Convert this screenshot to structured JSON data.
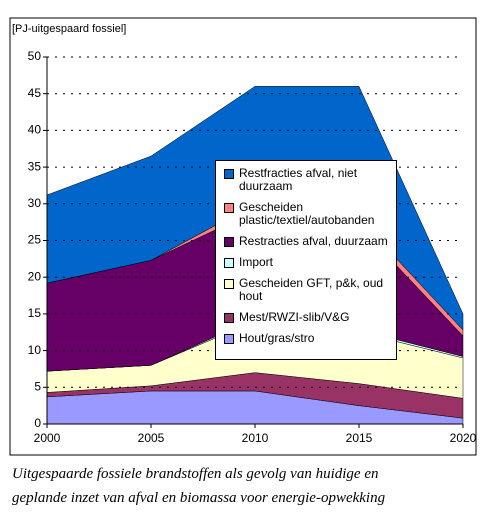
{
  "chart_data": {
    "type": "area",
    "stacked": true,
    "y_label": "[PJ-uitgespaard fossiel]",
    "caption": [
      "Uitgespaarde fossiele brandstoffen als gevolg van huidige en",
      "geplande inzet van afval en biomassa voor energie-opwekking"
    ],
    "x": [
      2000,
      2005,
      2010,
      2015,
      2020
    ],
    "xlim": [
      2000,
      2020
    ],
    "xticks": [
      2000,
      2005,
      2010,
      2015,
      2020
    ],
    "ylim": [
      0,
      50
    ],
    "yticks": [
      0,
      5,
      10,
      15,
      20,
      25,
      30,
      35,
      40,
      45,
      50
    ],
    "grid": true,
    "legend": "center",
    "series": [
      {
        "name": "Hout/gras/stro",
        "color": "#9999ff",
        "values": [
          3.7,
          4.5,
          4.5,
          2.5,
          0.8
        ]
      },
      {
        "name": "Mest/RWZI-slib/V&G",
        "color": "#993366",
        "values": [
          0.6,
          0.7,
          2.5,
          3,
          2.7
        ]
      },
      {
        "name": "Gescheiden GFT, p&k, oud hout",
        "color": "#ffffcc",
        "values": [
          2.9,
          2.8,
          7,
          7,
          5.5
        ]
      },
      {
        "name": "Import",
        "color": "#ccffff",
        "values": [
          0,
          0,
          0.3,
          0.3,
          0.2
        ]
      },
      {
        "name": "Restracties afval, duurzaam",
        "color": "#660066",
        "values": [
          12,
          14.3,
          14.7,
          14.2,
          2.8
        ]
      },
      {
        "name": "Gescheiden plastic/textiel/autobanden",
        "color": "#ff8080",
        "values": [
          0,
          0,
          1,
          1,
          0.8
        ]
      },
      {
        "name": "Restfracties afval, niet duurzaam",
        "color": "#0066cc",
        "values": [
          12,
          14.2,
          16,
          18,
          2.2
        ]
      }
    ]
  }
}
